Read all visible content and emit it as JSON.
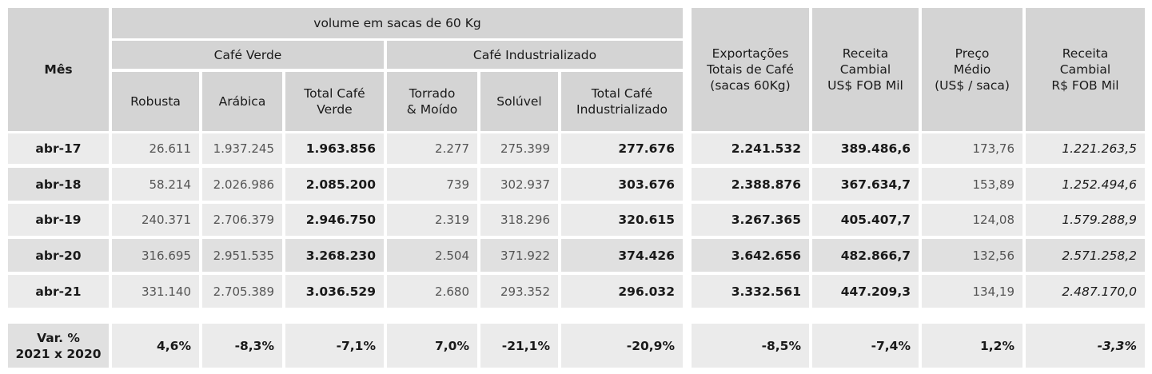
{
  "header": {
    "mes": "Mês",
    "volume_group": "volume em sacas de 60 Kg",
    "cafe_verde": "Café Verde",
    "cafe_industrializado": "Café Industrializado",
    "robusta": "Robusta",
    "arabica": "Arábica",
    "total_cafe_verde": "Total Café\nVerde",
    "torrado_moido": "Torrado\n& Moído",
    "soluvel": "Solúvel",
    "total_cafe_industrializado": "Total Café\nIndustrializado",
    "exportacoes_totais": "Exportações\nTotais de Café\n(sacas 60Kg)",
    "receita_usd": "Receita\nCambial\nUS$ FOB Mil",
    "preco_medio": "Preço\nMédio\n(US$ / saca)",
    "receita_brl": "Receita\nCambial\nR$ FOB Mil"
  },
  "rows": [
    {
      "mes": "abr-17",
      "robusta": "26.611",
      "arabica": "1.937.245",
      "total_verde": "1.963.856",
      "torrado": "2.277",
      "soluvel": "275.399",
      "total_ind": "277.676",
      "exportacoes": "2.241.532",
      "receita_usd": "389.486,6",
      "preco": "173,76",
      "receita_brl": "1.221.263,5"
    },
    {
      "mes": "abr-18",
      "robusta": "58.214",
      "arabica": "2.026.986",
      "total_verde": "2.085.200",
      "torrado": "739",
      "soluvel": "302.937",
      "total_ind": "303.676",
      "exportacoes": "2.388.876",
      "receita_usd": "367.634,7",
      "preco": "153,89",
      "receita_brl": "1.252.494,6"
    },
    {
      "mes": "abr-19",
      "robusta": "240.371",
      "arabica": "2.706.379",
      "total_verde": "2.946.750",
      "torrado": "2.319",
      "soluvel": "318.296",
      "total_ind": "320.615",
      "exportacoes": "3.267.365",
      "receita_usd": "405.407,7",
      "preco": "124,08",
      "receita_brl": "1.579.288,9"
    },
    {
      "mes": "abr-20",
      "robusta": "316.695",
      "arabica": "2.951.535",
      "total_verde": "3.268.230",
      "torrado": "2.504",
      "soluvel": "371.922",
      "total_ind": "374.426",
      "exportacoes": "3.642.656",
      "receita_usd": "482.866,7",
      "preco": "132,56",
      "receita_brl": "2.571.258,2"
    },
    {
      "mes": "abr-21",
      "robusta": "331.140",
      "arabica": "2.705.389",
      "total_verde": "3.036.529",
      "torrado": "2.680",
      "soluvel": "293.352",
      "total_ind": "296.032",
      "exportacoes": "3.332.561",
      "receita_usd": "447.209,3",
      "preco": "134,19",
      "receita_brl": "2.487.170,0"
    }
  ],
  "variation": {
    "label": "Var. %\n2021 x 2020",
    "robusta": "4,6%",
    "arabica": "-8,3%",
    "total_verde": "-7,1%",
    "torrado": "7,0%",
    "soluvel": "-21,1%",
    "total_ind": "-20,9%",
    "exportacoes": "-8,5%",
    "receita_usd": "-7,4%",
    "preco": "1,2%",
    "receita_brl": "-3,3%"
  }
}
